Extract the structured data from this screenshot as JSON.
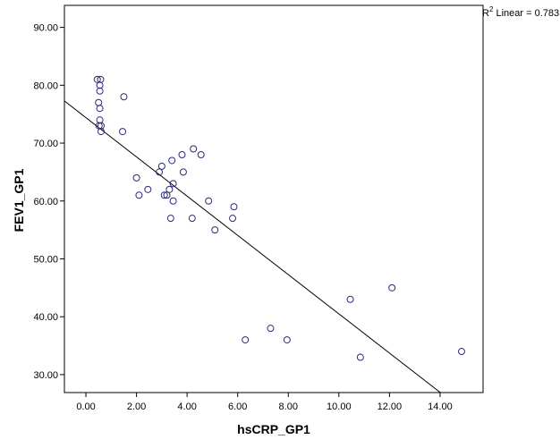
{
  "chart_data": {
    "type": "scatter",
    "title": "",
    "xlabel": "hsCRP_GP1",
    "ylabel": "FEV1_GP1",
    "xlim": [
      -0.85,
      15.7
    ],
    "ylim": [
      26.9,
      93.8
    ],
    "x_ticks": [
      "0.00",
      "2.00",
      "4.00",
      "6.00",
      "8.00",
      "10.00",
      "12.00",
      "14.00"
    ],
    "x_tick_values": [
      0,
      2,
      4,
      6,
      8,
      10,
      12,
      14
    ],
    "y_ticks": [
      "30.00",
      "40.00",
      "50.00",
      "60.00",
      "70.00",
      "80.00",
      "90.00"
    ],
    "y_tick_values": [
      30,
      40,
      50,
      60,
      70,
      80,
      90
    ],
    "grid": false,
    "marker_color": "#2b2b7a",
    "line_color": "#000000",
    "r2_label": {
      "superscript": "2",
      "prefix": "R",
      "text": " Linear = 0.783"
    },
    "fit_line": {
      "intercept": 74.4,
      "slope": -3.39
    },
    "points": [
      {
        "x": 0.45,
        "y": 81
      },
      {
        "x": 0.58,
        "y": 81
      },
      {
        "x": 0.55,
        "y": 80
      },
      {
        "x": 0.55,
        "y": 79
      },
      {
        "x": 0.5,
        "y": 77
      },
      {
        "x": 0.55,
        "y": 76
      },
      {
        "x": 0.55,
        "y": 74
      },
      {
        "x": 0.52,
        "y": 73
      },
      {
        "x": 0.6,
        "y": 73
      },
      {
        "x": 0.6,
        "y": 72
      },
      {
        "x": 1.5,
        "y": 78
      },
      {
        "x": 1.45,
        "y": 72
      },
      {
        "x": 2.0,
        "y": 64
      },
      {
        "x": 2.1,
        "y": 61
      },
      {
        "x": 2.45,
        "y": 62
      },
      {
        "x": 2.9,
        "y": 65
      },
      {
        "x": 3.0,
        "y": 66
      },
      {
        "x": 3.1,
        "y": 61
      },
      {
        "x": 3.2,
        "y": 61
      },
      {
        "x": 3.3,
        "y": 62
      },
      {
        "x": 3.35,
        "y": 57
      },
      {
        "x": 3.4,
        "y": 67
      },
      {
        "x": 3.45,
        "y": 63
      },
      {
        "x": 3.45,
        "y": 60
      },
      {
        "x": 3.8,
        "y": 68
      },
      {
        "x": 3.85,
        "y": 65
      },
      {
        "x": 4.2,
        "y": 57
      },
      {
        "x": 4.25,
        "y": 69
      },
      {
        "x": 4.55,
        "y": 68
      },
      {
        "x": 4.85,
        "y": 60
      },
      {
        "x": 5.1,
        "y": 55
      },
      {
        "x": 5.8,
        "y": 57
      },
      {
        "x": 5.85,
        "y": 59
      },
      {
        "x": 6.3,
        "y": 36
      },
      {
        "x": 7.3,
        "y": 38
      },
      {
        "x": 7.95,
        "y": 36
      },
      {
        "x": 10.45,
        "y": 43
      },
      {
        "x": 10.85,
        "y": 33
      },
      {
        "x": 12.1,
        "y": 45
      },
      {
        "x": 14.85,
        "y": 34
      }
    ]
  }
}
